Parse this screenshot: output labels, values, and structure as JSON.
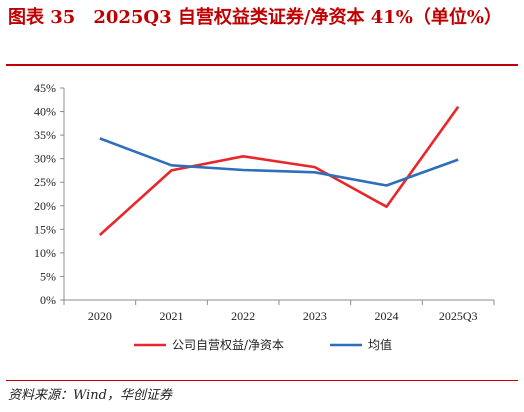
{
  "title": "图表 35　2025Q3 自营权益类证券/净资本 41%（单位%）",
  "source": "资料来源：Wind，华创证券",
  "colors": {
    "accent": "#c00000",
    "series1": "#e8272c",
    "series2": "#2f6fba"
  },
  "chart_data": {
    "type": "line",
    "categories": [
      "2020",
      "2021",
      "2022",
      "2023",
      "2024",
      "2025Q3"
    ],
    "series": [
      {
        "name": "公司自营权益/净资本",
        "values": [
          13.8,
          27.5,
          30.5,
          28.2,
          19.8,
          41.0
        ],
        "color": "#e8272c"
      },
      {
        "name": "均值",
        "values": [
          34.3,
          28.6,
          27.6,
          27.1,
          24.3,
          29.8
        ],
        "color": "#2f6fba"
      }
    ],
    "yticks": [
      "0%",
      "5%",
      "10%",
      "15%",
      "20%",
      "25%",
      "30%",
      "35%",
      "40%",
      "45%"
    ],
    "ylim": [
      0,
      45
    ],
    "grid": false,
    "legend": "bottom"
  }
}
